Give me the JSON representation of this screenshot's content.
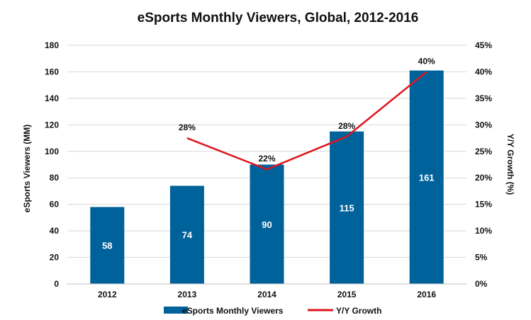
{
  "chart_data": {
    "type": "bar",
    "title": "eSports Monthly Viewers, Global, 2012-2016",
    "categories": [
      "2012",
      "2013",
      "2014",
      "2015",
      "2016"
    ],
    "ylabel": "eSports Viewers (MM)",
    "y2label": "Y/Y Growth (%)",
    "ylim": [
      0,
      180
    ],
    "y2lim": [
      0,
      45
    ],
    "yticks": [
      "0",
      "20",
      "40",
      "60",
      "80",
      "100",
      "120",
      "140",
      "160",
      "180"
    ],
    "y2ticks": [
      "0%",
      "5%",
      "10%",
      "15%",
      "20%",
      "25%",
      "30%",
      "35%",
      "40%",
      "45%"
    ],
    "grid": true,
    "legend_position": "bottom",
    "series": [
      {
        "name": "eSports Monthly Viewers",
        "type": "bar",
        "axis": "left",
        "color": "#00629B",
        "values": [
          58,
          74,
          90,
          115,
          161
        ],
        "labels": [
          "58",
          "74",
          "90",
          "115",
          "161"
        ]
      },
      {
        "name": "Y/Y Growth",
        "type": "line",
        "axis": "right",
        "color": "#E0141E",
        "values": [
          null,
          27.5,
          21.6,
          27.8,
          40
        ],
        "labels": [
          "",
          "28%",
          "22%",
          "28%",
          "40%"
        ]
      }
    ]
  }
}
